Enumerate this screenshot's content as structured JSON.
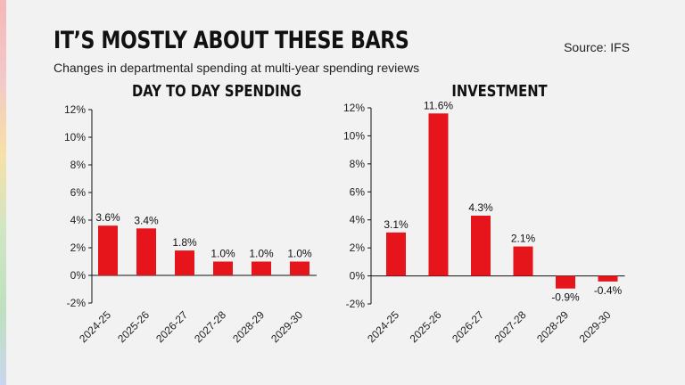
{
  "header": {
    "title": "IT’S MOSTLY ABOUT THESE BARS",
    "subtitle": "Changes in departmental spending at multi-year spending reviews",
    "source": "Source: IFS"
  },
  "colors": {
    "bar": "#e6141b",
    "axis": "#111111"
  },
  "chart_data": [
    {
      "type": "bar",
      "title": "DAY TO DAY SPENDING",
      "categories": [
        "2024-25",
        "2025-26",
        "2026-27",
        "2027-28",
        "2028-29",
        "2029-30"
      ],
      "values": [
        3.6,
        3.4,
        1.8,
        1.0,
        1.0,
        1.0
      ],
      "data_labels": [
        "3.6%",
        "3.4%",
        "1.8%",
        "1.0%",
        "1.0%",
        "1.0%"
      ],
      "ylim": [
        -2,
        12
      ],
      "yticks": [
        12,
        10,
        8,
        6,
        4,
        2,
        0,
        -2
      ],
      "ytick_labels": [
        "12%",
        "10%",
        "8%",
        "6%",
        "4%",
        "2%",
        "0%",
        "-2%"
      ],
      "grid": false
    },
    {
      "type": "bar",
      "title": "INVESTMENT",
      "categories": [
        "2024-25",
        "2025-26",
        "2026-27",
        "2027-28",
        "2028-29",
        "2029-30"
      ],
      "values": [
        3.1,
        11.6,
        4.3,
        2.1,
        -0.9,
        -0.4
      ],
      "data_labels": [
        "3.1%",
        "11.6%",
        "4.3%",
        "2.1%",
        "-0.9%",
        "-0.4%"
      ],
      "ylim": [
        -2,
        12
      ],
      "yticks": [
        12,
        10,
        8,
        6,
        4,
        2,
        0,
        -2
      ],
      "ytick_labels": [
        "12%",
        "10%",
        "8%",
        "6%",
        "4%",
        "2%",
        "0%",
        "-2%"
      ],
      "grid": false
    }
  ]
}
